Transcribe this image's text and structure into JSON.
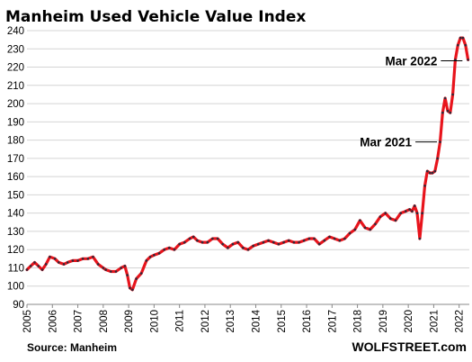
{
  "chart_data": {
    "type": "line",
    "title": "Manheim Used Vehicle Value Index",
    "ylim": [
      90,
      240
    ],
    "yticks": [
      90,
      100,
      110,
      120,
      130,
      140,
      150,
      160,
      170,
      180,
      190,
      200,
      210,
      220,
      230,
      240
    ],
    "xlim": [
      2005.0,
      2022.4
    ],
    "xtick_labels": [
      "2005",
      "2006",
      "2007",
      "2008",
      "2009",
      "2010",
      "2011",
      "2012",
      "2013",
      "2014",
      "2015",
      "2016",
      "2017",
      "2018",
      "2019",
      "2020",
      "2021",
      "2022"
    ],
    "grid": "horizontal",
    "line_color": "#e8141c",
    "marker_color": "#2e2a3a",
    "series": [
      {
        "x": [
          2005.0,
          2005.15,
          2005.3,
          2005.45,
          2005.6,
          2005.75,
          2005.9,
          2006.1,
          2006.25,
          2006.45,
          2006.6,
          2006.8,
          2007.0,
          2007.2,
          2007.4,
          2007.6,
          2007.8,
          2008.0,
          2008.1,
          2008.3,
          2008.5,
          2008.7,
          2008.85,
          2008.95,
          2009.05,
          2009.15,
          2009.3,
          2009.5,
          2009.7,
          2009.85,
          2010.0,
          2010.2,
          2010.4,
          2010.6,
          2010.8,
          2011.0,
          2011.2,
          2011.4,
          2011.55,
          2011.7,
          2011.9,
          2012.1,
          2012.3,
          2012.5,
          2012.7,
          2012.9,
          2013.1,
          2013.3,
          2013.5,
          2013.7,
          2013.9,
          2014.1,
          2014.3,
          2014.5,
          2014.7,
          2014.9,
          2015.1,
          2015.3,
          2015.5,
          2015.7,
          2015.9,
          2016.1,
          2016.3,
          2016.5,
          2016.7,
          2016.9,
          2017.1,
          2017.3,
          2017.5,
          2017.7,
          2017.9,
          2018.1,
          2018.3,
          2018.5,
          2018.7,
          2018.9,
          2019.1,
          2019.3,
          2019.5,
          2019.7,
          2019.9,
          2020.05,
          2020.15,
          2020.25,
          2020.35,
          2020.45,
          2020.55,
          2020.65,
          2020.75,
          2020.85,
          2020.95,
          2021.05,
          2021.15,
          2021.25,
          2021.35,
          2021.45,
          2021.55,
          2021.65,
          2021.75,
          2021.85,
          2021.95,
          2022.05,
          2022.15,
          2022.25,
          2022.35
        ],
        "values": [
          109,
          111,
          113,
          111,
          109,
          112,
          116,
          115,
          113,
          112,
          113,
          114,
          114,
          115,
          115,
          116,
          112,
          110,
          109,
          108,
          108,
          110,
          111,
          106,
          99,
          98,
          104,
          107,
          114,
          116,
          117,
          118,
          120,
          121,
          120,
          123,
          124,
          126,
          127,
          125,
          124,
          124,
          126,
          126,
          123,
          121,
          123,
          124,
          121,
          120,
          122,
          123,
          124,
          125,
          124,
          123,
          124,
          125,
          124,
          124,
          125,
          126,
          126,
          123,
          125,
          127,
          126,
          125,
          126,
          129,
          131,
          136,
          132,
          131,
          134,
          138,
          140,
          137,
          136,
          140,
          141,
          142,
          141,
          144,
          140,
          126,
          140,
          155,
          163,
          162,
          162,
          163,
          170,
          179,
          195,
          203,
          196,
          195,
          205,
          224,
          232,
          236,
          236,
          232,
          224
        ]
      }
    ],
    "annotations": [
      {
        "label": "Mar 2022",
        "x": 2022.2,
        "y": 223.5
      },
      {
        "label": "Mar 2021",
        "x": 2021.2,
        "y": 179
      }
    ],
    "source": "Source: Manheim",
    "brand": "WOLFSTREET.com"
  }
}
